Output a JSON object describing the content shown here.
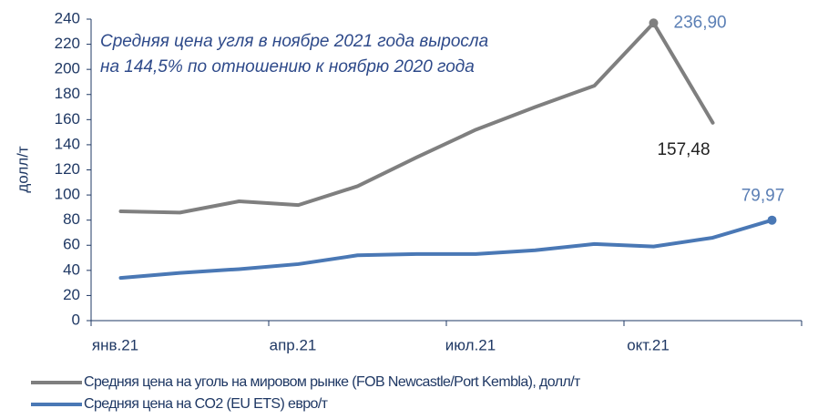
{
  "chart_data": {
    "type": "line",
    "annotation": [
      "Средняя цена угля в ноябре 2021 года выросла",
      "на 144,5% по отношению к ноябрю 2020 года"
    ],
    "y_label": "долл/т",
    "categories": [
      "янв.21",
      null,
      null,
      "апр.21",
      null,
      null,
      "июл.21",
      null,
      null,
      "окт.21",
      null,
      null
    ],
    "series": [
      {
        "name": "Средняя цена на уголь на мировом рынке (FOB Newcastle/Port Kembla), долл/т",
        "color": "#7f7f7f",
        "values": [
          87,
          86,
          95,
          92,
          107,
          130,
          152,
          170,
          187,
          236.9,
          157.48,
          null
        ],
        "value_labels": [
          null,
          null,
          null,
          null,
          null,
          null,
          null,
          null,
          null,
          "236,90",
          "157,48",
          null
        ]
      },
      {
        "name": "Средняя цена на CO2 (EU ETS) евро/т",
        "color": "#4a78b5",
        "values": [
          34,
          38,
          41,
          45,
          52,
          53,
          53,
          56,
          61,
          59,
          66,
          79.97
        ],
        "value_labels": [
          null,
          null,
          null,
          null,
          null,
          null,
          null,
          null,
          null,
          null,
          null,
          "79,97"
        ]
      }
    ],
    "ylim": [
      0,
      240
    ],
    "yticks": [
      0,
      20,
      40,
      60,
      80,
      100,
      120,
      140,
      160,
      180,
      200,
      220,
      240
    ]
  }
}
